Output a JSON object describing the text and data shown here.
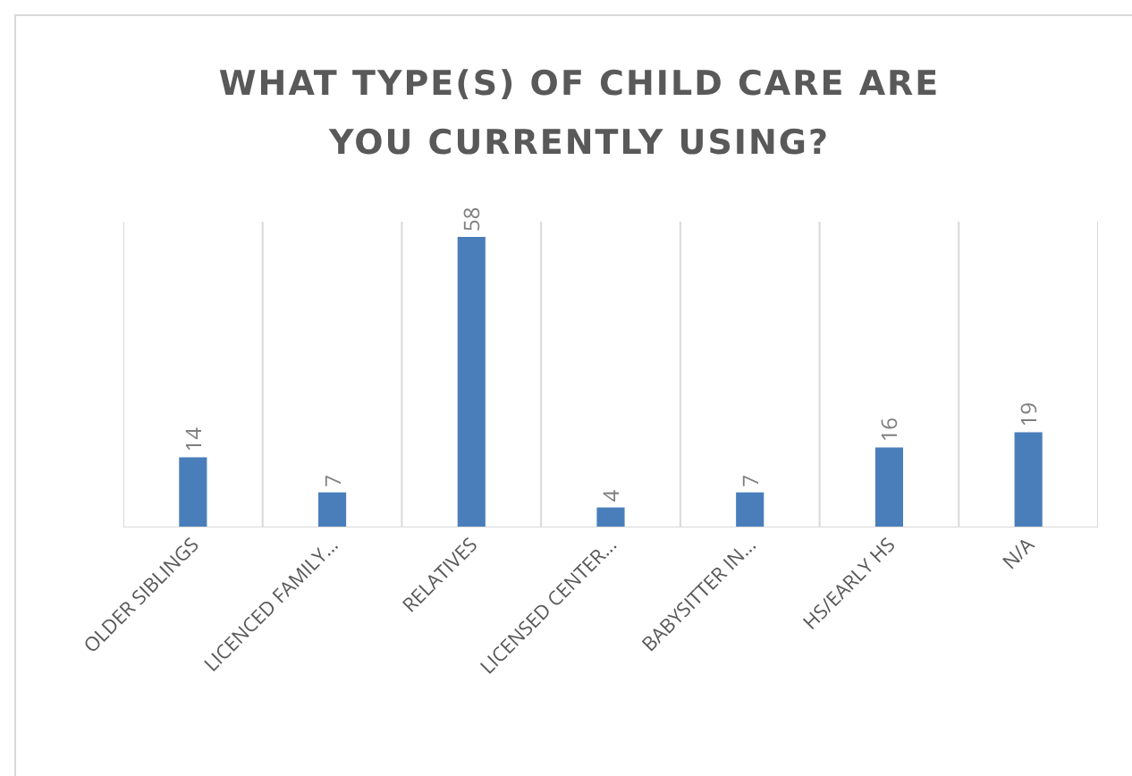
{
  "chart_data": {
    "type": "bar",
    "title": "WHAT TYPE(S) OF CHILD CARE ARE YOU CURRENTLY USING?",
    "categories": [
      "OLDER SIBLINGS",
      "LICENCED FAMILY...",
      "RELATIVES",
      "LICENSED CENTER...",
      "BABYSITTER IN...",
      "HS/EARLY HS",
      "N/A"
    ],
    "values": [
      14,
      7,
      58,
      4,
      7,
      16,
      19
    ],
    "color": "#4a7ebb",
    "data_labels": true,
    "grid": "x",
    "legend": false
  }
}
